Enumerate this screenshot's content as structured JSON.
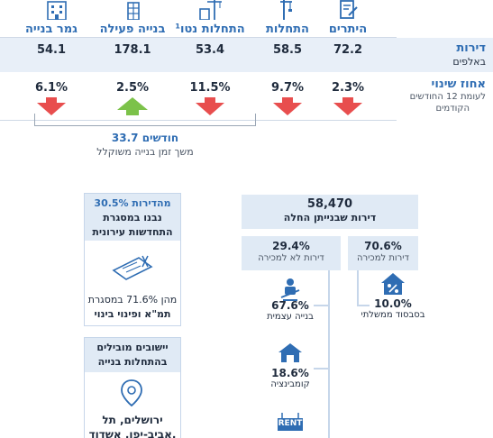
{
  "columns": [
    {
      "icon": "document-edit-icon",
      "header": "היתרים",
      "value": "72.2",
      "change": "2.3%",
      "direction": "down"
    },
    {
      "icon": "crane-icon",
      "header": "התחלות",
      "value": "58.5",
      "change": "9.7%",
      "direction": "down"
    },
    {
      "icon": "building-crane-icon",
      "header": "התחלות נטו¹",
      "value": "53.4",
      "change": "11.5%",
      "direction": "down"
    },
    {
      "icon": "construction-building-icon",
      "header": "בנייה פעילה",
      "value": "178.1",
      "change": "2.5%",
      "direction": "up"
    },
    {
      "icon": "apartment-building-icon",
      "header": "גמר בנייה",
      "value": "54.1",
      "change": "6.1%",
      "direction": "down"
    }
  ],
  "row_labels": {
    "value_title": "דירות",
    "value_sub": "באלפים",
    "change_title": "אחוז שינוי",
    "change_sub1": "לעומת 12 החודשים",
    "change_sub2": "הקודמים"
  },
  "duration": {
    "value": "33.7 חודשים",
    "label": "משך זמן בנייה משוקלל"
  },
  "started": {
    "value": "58,470",
    "label": "דירות שבנייתן החלה"
  },
  "for_sale": {
    "value": "70.6%",
    "label": "דירות למכירה"
  },
  "not_for_sale": {
    "value": "29.4%",
    "label": "דירות לא למכירה"
  },
  "subsidized": {
    "value": "10.0%",
    "label": "בסבסוד ממשלתי",
    "icon": "house-percent-icon"
  },
  "self_build": {
    "value": "67.6%",
    "label": "בנייה עצמית",
    "icon": "builder-icon"
  },
  "combination": {
    "value": "18.6%",
    "label": "קומבינציה",
    "icon": "house-handshake-icon"
  },
  "rent_icon": {
    "icon": "rent-sign-icon",
    "text": "RENT"
  },
  "urban_renewal": {
    "line1": "30.5% מהדירות",
    "line2": "נבנו במסגרת",
    "line3": "התחדשות עירונית",
    "icon": "blueprint-icon",
    "sub1": "מהן 71.6% במסגרת",
    "sub2": "תמ\"א ופינוי בינוי"
  },
  "leading": {
    "line1": "יישובים מובילים",
    "line2": "בהתחלות בנייה",
    "icon": "map-pin-icon",
    "cities1": "ירושלים, תל",
    "cities2": "אביב-יפו, אשדוד,"
  },
  "colors": {
    "accent": "#2f6db3",
    "down": "#e84e4e",
    "up": "#7cc24a",
    "panel": "#e0eaf5"
  }
}
